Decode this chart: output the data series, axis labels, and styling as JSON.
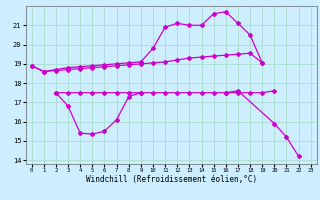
{
  "background_color": "#cceeff",
  "grid_color": "#aaddcc",
  "line_color": "#cc00cc",
  "xlim": [
    -0.5,
    23.5
  ],
  "ylim": [
    13.8,
    22.0
  ],
  "yticks": [
    14,
    15,
    16,
    17,
    18,
    19,
    20,
    21
  ],
  "xticks": [
    0,
    1,
    2,
    3,
    4,
    5,
    6,
    7,
    8,
    9,
    10,
    11,
    12,
    13,
    14,
    15,
    16,
    17,
    18,
    19,
    20,
    21,
    22,
    23
  ],
  "xlabel": "Windchill (Refroidissement éolien,°C)",
  "curve_top_x": [
    0,
    1,
    2,
    3,
    4,
    5,
    6,
    7,
    8,
    9,
    10,
    11,
    12,
    13,
    14,
    15,
    16,
    17,
    18,
    19
  ],
  "curve_top_y": [
    18.9,
    18.6,
    18.7,
    18.8,
    18.85,
    18.9,
    18.95,
    19.0,
    19.05,
    19.1,
    19.8,
    20.9,
    21.1,
    21.0,
    21.0,
    21.6,
    21.7,
    21.1,
    20.5,
    19.05
  ],
  "curve_upper_flat_x": [
    0,
    1,
    2,
    3,
    4,
    5,
    6,
    7,
    8,
    9,
    10,
    11,
    12,
    13,
    14,
    15,
    16,
    17,
    18,
    19
  ],
  "curve_upper_flat_y": [
    18.9,
    18.6,
    18.65,
    18.7,
    18.75,
    18.8,
    18.85,
    18.9,
    18.95,
    19.0,
    19.05,
    19.1,
    19.2,
    19.3,
    19.35,
    19.4,
    19.45,
    19.5,
    19.55,
    19.05
  ],
  "curve_mid_x": [
    2,
    3,
    4,
    5,
    6,
    7,
    8,
    9,
    10,
    11,
    12,
    13,
    14,
    15,
    16,
    17,
    18,
    19,
    20
  ],
  "curve_mid_y": [
    17.5,
    17.5,
    17.5,
    17.5,
    17.5,
    17.5,
    17.5,
    17.5,
    17.5,
    17.5,
    17.5,
    17.5,
    17.5,
    17.5,
    17.5,
    17.5,
    17.5,
    17.5,
    17.6
  ],
  "curve_low_x": [
    2,
    3,
    4,
    5,
    6,
    7,
    8,
    9
  ],
  "curve_low_y": [
    17.5,
    16.8,
    15.4,
    15.35,
    15.5,
    16.1,
    17.3,
    17.5
  ],
  "curve_right_x": [
    16,
    17,
    20,
    21,
    22
  ],
  "curve_right_y": [
    17.5,
    17.6,
    15.9,
    15.2,
    14.2
  ]
}
